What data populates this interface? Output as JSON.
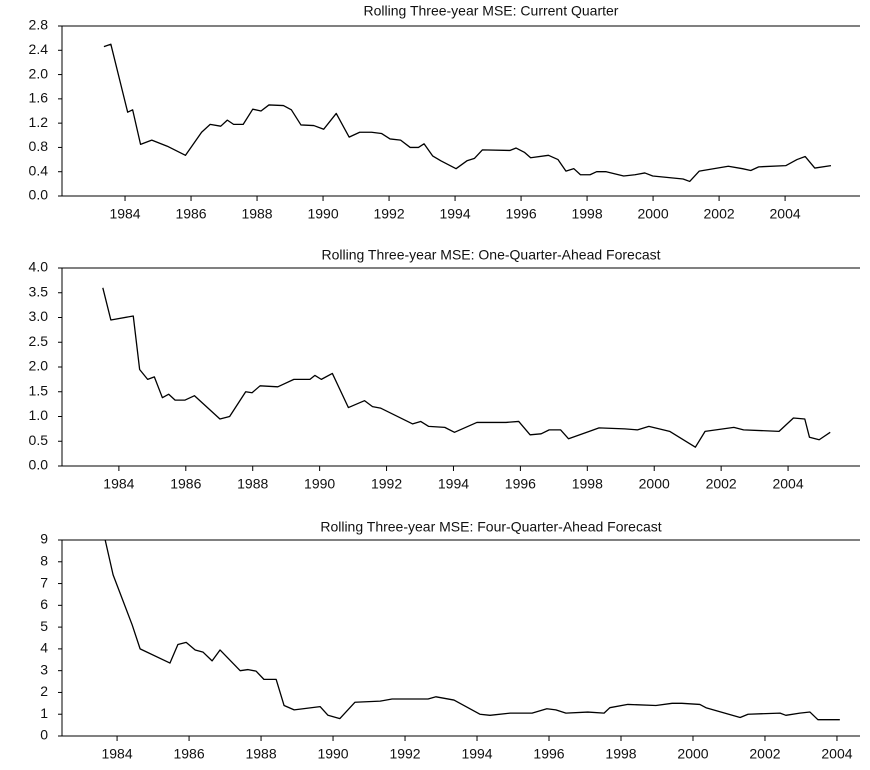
{
  "chart_data": [
    {
      "type": "line",
      "title": "Rolling Three-year MSE: Current Quarter",
      "xlim": [
        1982.09,
        2006.27
      ],
      "xticks": [
        1984,
        1986,
        1988,
        1990,
        1992,
        1994,
        1996,
        1998,
        2000,
        2002,
        2004
      ],
      "ylim": [
        0,
        2.8
      ],
      "yticks": [
        {
          "value": 0,
          "label": "0.0"
        },
        0.4,
        0.8,
        1.2,
        1.6,
        {
          "value": 2,
          "label": "2.0"
        },
        2.4,
        2.8
      ],
      "series": [
        {
          "color": "#000000",
          "x": [
            1983.36,
            1983.57,
            1984.08,
            1984.23,
            1984.47,
            1984.81,
            1985.28,
            1985.83,
            1986.32,
            1986.58,
            1986.9,
            1987.1,
            1987.29,
            1987.58,
            1987.87,
            1988.12,
            1988.36,
            1988.8,
            1989.04,
            1989.33,
            1989.72,
            1990.02,
            1990.4,
            1990.79,
            1991.11,
            1991.47,
            1991.77,
            1992.03,
            1992.35,
            1992.64,
            1992.89,
            1993.06,
            1993.32,
            1993.57,
            1994.03,
            1994.36,
            1994.59,
            1994.83,
            1995.66,
            1995.85,
            1996.1,
            1996.29,
            1996.83,
            1997.12,
            1997.36,
            1997.6,
            1997.8,
            1998.09,
            1998.29,
            1998.58,
            1999.11,
            1999.45,
            1999.75,
            1999.99,
            2000.91,
            2001.11,
            2001.4,
            2002.28,
            2002.71,
            2002.96,
            2003.2,
            2004.02,
            2004.36,
            2004.61,
            2004.9,
            2005.39
          ],
          "values": [
            2.46,
            2.5,
            1.38,
            1.42,
            0.85,
            0.92,
            0.82,
            0.67,
            1.05,
            1.18,
            1.15,
            1.25,
            1.18,
            1.18,
            1.43,
            1.4,
            1.5,
            1.49,
            1.42,
            1.17,
            1.16,
            1.1,
            1.36,
            0.97,
            1.05,
            1.05,
            1.03,
            0.94,
            0.92,
            0.8,
            0.8,
            0.86,
            0.66,
            0.58,
            0.45,
            0.58,
            0.62,
            0.76,
            0.75,
            0.79,
            0.72,
            0.63,
            0.67,
            0.6,
            0.41,
            0.45,
            0.35,
            0.35,
            0.4,
            0.4,
            0.33,
            0.35,
            0.38,
            0.33,
            0.28,
            0.24,
            0.41,
            0.49,
            0.45,
            0.42,
            0.48,
            0.5,
            0.6,
            0.65,
            0.46,
            0.5
          ]
        }
      ]
    },
    {
      "type": "line",
      "title": "Rolling Three-year MSE: One-Quarter-Ahead Forecast",
      "xlim": [
        1982.3,
        2006.15
      ],
      "xticks": [
        1984,
        1986,
        1988,
        1990,
        1992,
        1994,
        1996,
        1998,
        2000,
        2002,
        2004
      ],
      "ylim": [
        0,
        4
      ],
      "yticks": [
        {
          "value": 0,
          "label": "0.0"
        },
        0.5,
        {
          "value": 1,
          "label": "1.0"
        },
        1.5,
        {
          "value": 2,
          "label": "2.0"
        },
        2.5,
        {
          "value": 3,
          "label": "3.0"
        },
        3.5,
        {
          "value": 4,
          "label": "4.0"
        }
      ],
      "series": [
        {
          "color": "#000000",
          "x": [
            1983.52,
            1983.76,
            1984.43,
            1984.62,
            1984.86,
            1985.06,
            1985.3,
            1985.49,
            1985.68,
            1985.97,
            1986.26,
            1987.02,
            1987.31,
            1987.79,
            1987.98,
            1988.22,
            1988.75,
            1989.23,
            1989.71,
            1989.86,
            1990.05,
            1990.38,
            1990.86,
            1991.34,
            1991.58,
            1991.82,
            1992.78,
            1993.02,
            1993.26,
            1993.74,
            1994.03,
            1994.7,
            1995.57,
            1995.95,
            1996.29,
            1996.62,
            1996.86,
            1997.2,
            1997.44,
            1998.06,
            1998.35,
            1999.12,
            1999.5,
            1999.84,
            2000.46,
            2001.23,
            2001.52,
            2002.38,
            2002.67,
            2003.73,
            2004.16,
            2004.5,
            2004.64,
            2004.93,
            2005.26
          ],
          "values": [
            3.6,
            2.95,
            3.03,
            1.95,
            1.75,
            1.8,
            1.38,
            1.45,
            1.33,
            1.33,
            1.42,
            0.95,
            1.0,
            1.5,
            1.48,
            1.62,
            1.6,
            1.75,
            1.75,
            1.83,
            1.75,
            1.87,
            1.18,
            1.32,
            1.2,
            1.17,
            0.85,
            0.9,
            0.8,
            0.78,
            0.68,
            0.88,
            0.88,
            0.9,
            0.63,
            0.65,
            0.73,
            0.73,
            0.55,
            0.7,
            0.77,
            0.75,
            0.73,
            0.8,
            0.7,
            0.38,
            0.7,
            0.78,
            0.73,
            0.7,
            0.97,
            0.95,
            0.58,
            0.53,
            0.68
          ]
        }
      ]
    },
    {
      "type": "line",
      "title": "Rolling Three-year MSE: Four-Quarter-Ahead Forecast",
      "xlim": [
        1982.47,
        2004.64
      ],
      "xticks": [
        1984,
        1986,
        1988,
        1990,
        1992,
        1994,
        1996,
        1998,
        2000,
        2002,
        2004
      ],
      "ylim": [
        0,
        9
      ],
      "yticks": [
        0,
        1,
        2,
        3,
        4,
        5,
        6,
        7,
        8,
        9
      ],
      "series": [
        {
          "color": "#000000",
          "x": [
            1983.67,
            1983.89,
            1984.42,
            1984.64,
            1985.47,
            1985.69,
            1985.92,
            1986.17,
            1986.39,
            1986.64,
            1986.86,
            1987.42,
            1987.64,
            1987.86,
            1988.08,
            1988.42,
            1988.64,
            1988.92,
            1989.64,
            1989.86,
            1990.19,
            1990.61,
            1991.31,
            1991.64,
            1992.64,
            1992.86,
            1993.36,
            1994.08,
            1994.36,
            1994.92,
            1995.53,
            1995.94,
            1996.19,
            1996.47,
            1997.08,
            1997.53,
            1997.69,
            1998.19,
            1998.97,
            1999.42,
            1999.69,
            2000.19,
            2000.36,
            2001.31,
            2001.53,
            2002.42,
            2002.58,
            2002.97,
            2003.25,
            2003.47,
            2004.08
          ],
          "values": [
            9.0,
            7.4,
            5.1,
            4.0,
            3.35,
            4.2,
            4.3,
            3.95,
            3.85,
            3.45,
            3.95,
            3.0,
            3.05,
            2.98,
            2.6,
            2.6,
            1.4,
            1.2,
            1.35,
            0.95,
            0.8,
            1.55,
            1.6,
            1.7,
            1.7,
            1.8,
            1.65,
            1.0,
            0.95,
            1.05,
            1.05,
            1.25,
            1.2,
            1.05,
            1.1,
            1.05,
            1.3,
            1.45,
            1.4,
            1.5,
            1.5,
            1.45,
            1.3,
            0.85,
            1.0,
            1.05,
            0.95,
            1.05,
            1.1,
            0.75,
            0.75
          ]
        }
      ]
    }
  ]
}
